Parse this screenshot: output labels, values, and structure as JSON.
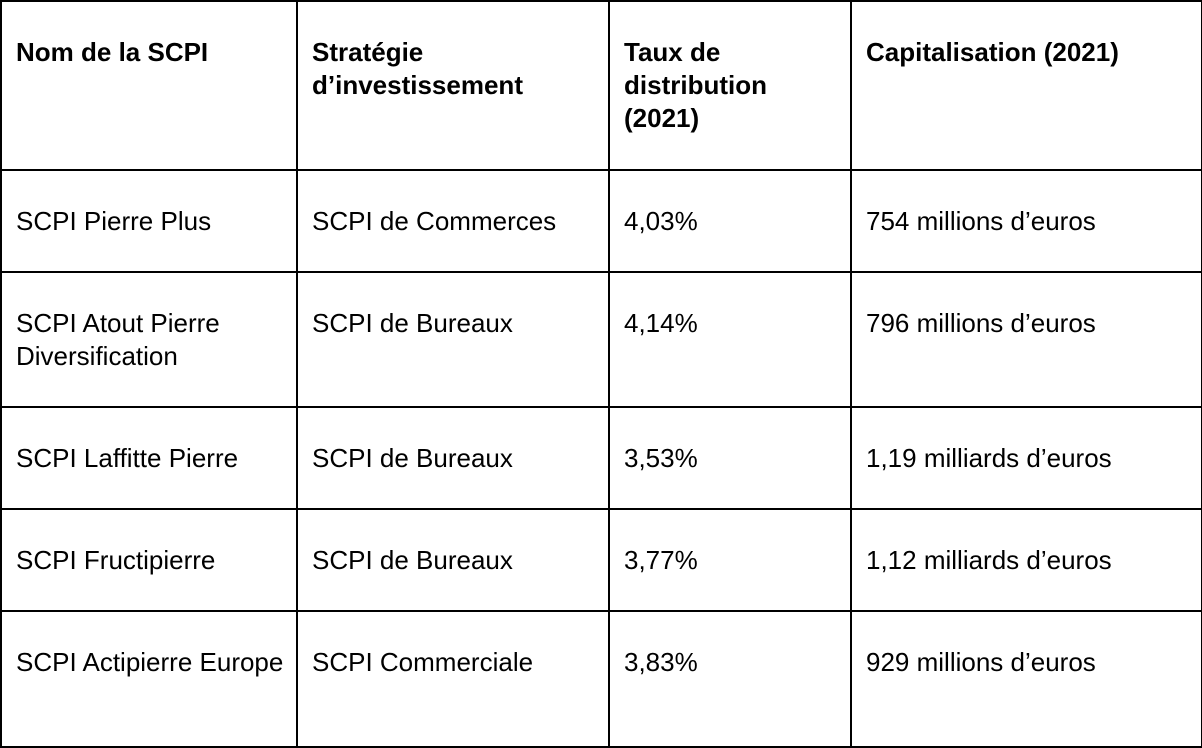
{
  "table": {
    "headers": [
      "Nom de la SCPI",
      "Stratégie d’investissement",
      "Taux de distribution (2021)",
      "Capitalisation (2021)"
    ],
    "rows": [
      [
        "SCPI Pierre Plus",
        "SCPI de Commerces",
        "4,03%",
        "754 millions d’euros"
      ],
      [
        "SCPI Atout Pierre Diversification",
        "SCPI de Bureaux",
        "4,14%",
        "796 millions d’euros"
      ],
      [
        "SCPI Laffitte Pierre",
        "SCPI de Bureaux",
        "3,53%",
        "1,19 milliards d’euros"
      ],
      [
        "SCPI Fructipierre",
        "SCPI de Bureaux",
        "3,77%",
        "1,12 milliards d’euros"
      ],
      [
        "SCPI Actipierre Europe",
        "SCPI Commerciale",
        "3,83%",
        "929 millions d’euros"
      ]
    ]
  }
}
